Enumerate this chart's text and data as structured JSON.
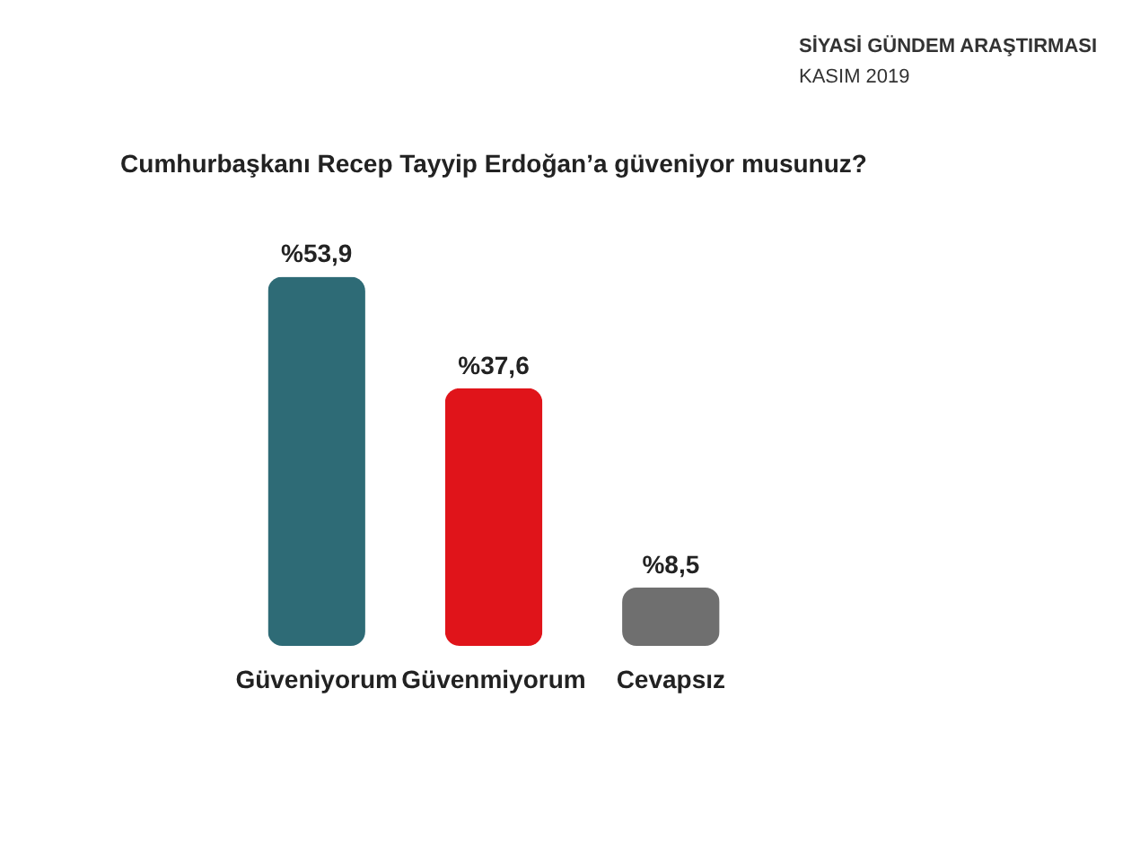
{
  "chart_data": {
    "type": "bar",
    "title": "Cumhurbaşkanı  Recep Tayyip Erdoğan’a güveniyor musunuz?",
    "subtitle": "SİYASİ GÜNDEM ARAŞTIRMASI",
    "annotations": [
      "KASIM 2019"
    ],
    "categories": [
      "Güveniyorum",
      "Güvenmiyorum",
      "Cevapsız"
    ],
    "values": [
      53.9,
      37.6,
      8.5
    ],
    "colors": [
      "#2e6b76",
      "#e0141a",
      "#6f6f6f"
    ],
    "value_labels": [
      "%53,9",
      "%37,6",
      "%8,5"
    ]
  }
}
